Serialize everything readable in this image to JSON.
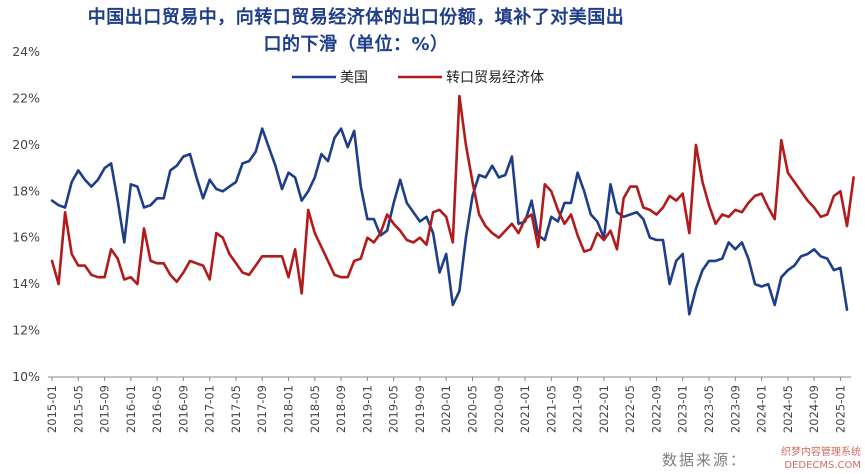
{
  "header": {
    "title_line1": "中国出口贸易中，向转口贸易经济体的出口份额，填补了对美国出",
    "title_line2": "口的下滑（单位：%）"
  },
  "footer": {
    "source": "数据来源：",
    "watermark_line1": "织梦内容管理系统",
    "watermark_line2": "DEDECMS.COM"
  },
  "colors": {
    "us": "#1f3e8a",
    "transit": "#b31b1b",
    "axis": "#888888"
  },
  "chart_data": {
    "type": "line",
    "xlabel": "",
    "ylabel": "",
    "ylim": [
      10,
      24
    ],
    "yticks": [
      "10%",
      "12%",
      "14%",
      "16%",
      "18%",
      "20%",
      "22%",
      "24%"
    ],
    "grid": false,
    "legend_position": "top-center",
    "x_start": "2015-01",
    "xtick_labels": [
      "2015-01",
      "2015-05",
      "2015-09",
      "2016-01",
      "2016-05",
      "2016-09",
      "2017-01",
      "2017-05",
      "2017-09",
      "2018-01",
      "2018-05",
      "2018-09",
      "2019-01",
      "2019-05",
      "2019-09",
      "2020-01",
      "2020-05",
      "2020-09",
      "2021-01",
      "2021-05",
      "2021-09",
      "2022-01",
      "2022-05",
      "2022-09",
      "2023-01",
      "2023-05",
      "2023-09",
      "2024-01",
      "2024-05",
      "2024-09",
      "2025-01"
    ],
    "series": [
      {
        "name": "美国",
        "color": "#1f3e8a",
        "values": [
          17.6,
          17.4,
          17.3,
          18.4,
          18.9,
          18.5,
          18.2,
          18.5,
          19.0,
          19.2,
          17.6,
          15.8,
          18.3,
          18.2,
          17.3,
          17.4,
          17.7,
          17.7,
          18.9,
          19.1,
          19.5,
          19.6,
          18.6,
          17.7,
          18.5,
          18.1,
          18.0,
          18.2,
          18.4,
          19.2,
          19.3,
          19.7,
          20.7,
          19.9,
          19.1,
          18.1,
          18.8,
          18.6,
          17.6,
          18.0,
          18.6,
          19.6,
          19.3,
          20.3,
          20.7,
          19.9,
          20.6,
          18.2,
          16.8,
          16.8,
          16.1,
          16.3,
          17.5,
          18.5,
          17.5,
          17.1,
          16.7,
          16.9,
          16.2,
          14.5,
          15.3,
          13.1,
          13.7,
          16.0,
          17.8,
          18.7,
          18.6,
          19.1,
          18.6,
          18.7,
          19.5,
          16.6,
          16.7,
          17.6,
          16.1,
          15.9,
          16.9,
          16.7,
          17.5,
          17.5,
          18.8,
          18.0,
          17.0,
          16.7,
          16.0,
          18.3,
          17.1,
          16.9,
          17.0,
          17.1,
          16.8,
          16.0,
          15.9,
          15.9,
          14.0,
          15.0,
          15.3,
          12.7,
          13.8,
          14.6,
          15.0,
          15.0,
          15.1,
          15.8,
          15.5,
          15.8,
          15.1,
          14.0,
          13.9,
          14.0,
          13.1,
          14.3,
          14.6,
          14.8,
          15.2,
          15.3,
          15.5,
          15.2,
          15.1,
          14.6,
          14.7,
          12.9
        ]
      },
      {
        "name": "转口贸易经济体",
        "color": "#b31b1b",
        "values": [
          15.0,
          14.0,
          17.1,
          15.3,
          14.8,
          14.8,
          14.4,
          14.3,
          14.3,
          15.5,
          15.1,
          14.2,
          14.3,
          14.0,
          16.4,
          15.0,
          14.9,
          14.9,
          14.4,
          14.1,
          14.5,
          15.0,
          14.9,
          14.8,
          14.2,
          16.2,
          16.0,
          15.3,
          14.9,
          14.5,
          14.4,
          14.8,
          15.2,
          15.2,
          15.2,
          15.2,
          14.3,
          15.5,
          13.6,
          17.2,
          16.2,
          15.6,
          15.0,
          14.4,
          14.3,
          14.3,
          15.0,
          15.1,
          16.0,
          15.8,
          16.2,
          17.0,
          16.6,
          16.3,
          15.9,
          15.8,
          16.0,
          15.7,
          17.1,
          17.2,
          16.9,
          15.8,
          22.1,
          20.0,
          18.4,
          17.0,
          16.5,
          16.2,
          16.0,
          16.3,
          16.6,
          16.2,
          16.8,
          17.0,
          15.6,
          18.3,
          18.0,
          17.2,
          16.6,
          17.0,
          16.1,
          15.4,
          15.5,
          16.2,
          15.9,
          16.3,
          15.5,
          17.7,
          18.2,
          18.2,
          17.3,
          17.2,
          17.0,
          17.3,
          17.8,
          17.6,
          17.9,
          16.2,
          20.0,
          18.4,
          17.4,
          16.6,
          17.0,
          16.9,
          17.2,
          17.1,
          17.5,
          17.8,
          17.9,
          17.3,
          16.8,
          20.2,
          18.8,
          18.4,
          18.0,
          17.6,
          17.3,
          16.9,
          17.0,
          17.8,
          18.0,
          16.5,
          18.6
        ]
      }
    ]
  }
}
